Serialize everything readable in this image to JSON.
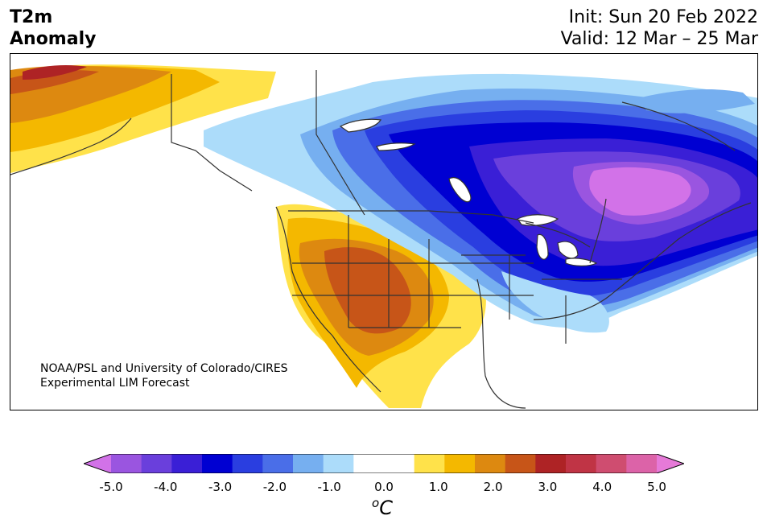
{
  "header": {
    "title_line1": "T2m",
    "title_line2": "Anomaly",
    "init": "Init: Sun 20 Feb 2022",
    "valid": "Valid: 12 Mar – 25 Mar"
  },
  "credit": {
    "line1": "NOAA/PSL and University of Colorado/CIRES",
    "line2": "Experimental LIM Forecast"
  },
  "colorbar": {
    "colors": [
      "#d272e8",
      "#9a55e0",
      "#6a3fdc",
      "#3a1fd6",
      "#0000d2",
      "#2a3ee0",
      "#4a6ee8",
      "#76aff0",
      "#acdcfa",
      "#ffffff",
      "#ffffff",
      "#ffe24a",
      "#f4b800",
      "#dd8910",
      "#c75518",
      "#ae2325",
      "#c03445",
      "#cf4d70",
      "#dc63a8",
      "#e67ad8"
    ],
    "ticks": [
      "-5.0",
      "-4.0",
      "-3.0",
      "-2.0",
      "-1.0",
      "0.0",
      "1.0",
      "2.0",
      "3.0",
      "4.0",
      "5.0"
    ],
    "unit_base": "C",
    "unit_sup": "o"
  },
  "map_colors": {
    "ocean_land": "#ffffff",
    "coast": "#333333"
  }
}
